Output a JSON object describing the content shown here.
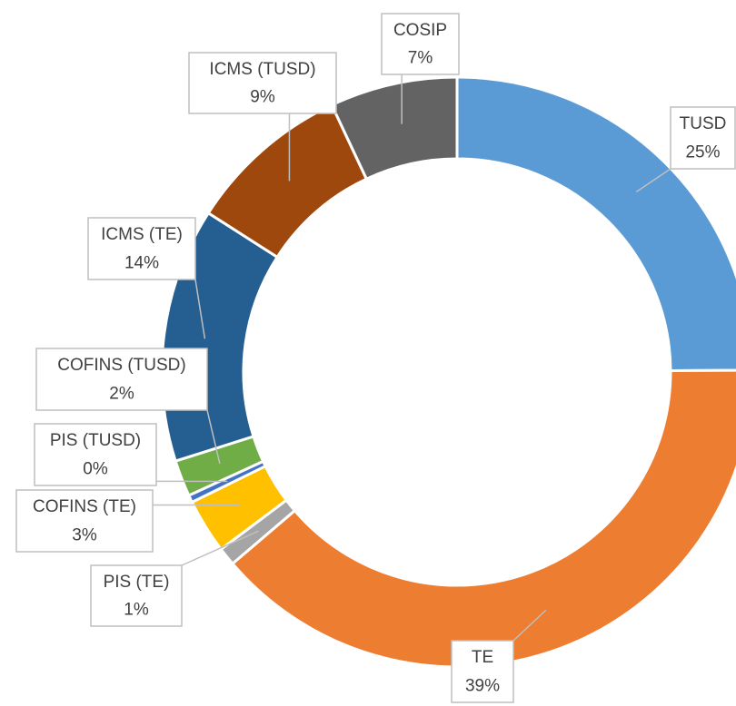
{
  "chart_data": {
    "type": "donut",
    "categories": [
      "TUSD",
      "TE",
      "PIS (TE)",
      "COFINS (TE)",
      "PIS (TUSD)",
      "COFINS (TUSD)",
      "ICMS (TE)",
      "ICMS (TUSD)",
      "COSIP"
    ],
    "values": [
      25,
      39,
      1,
      3,
      0.4,
      2,
      14,
      9,
      7
    ],
    "value_labels": [
      "25%",
      "39%",
      "1%",
      "3%",
      "0%",
      "2%",
      "14%",
      "9%",
      "7%"
    ],
    "colors": [
      "#5b9bd5",
      "#ed7d31",
      "#a5a5a5",
      "#ffc000",
      "#4472c4",
      "#70ad47",
      "#255e91",
      "#9e480e",
      "#636363"
    ]
  }
}
